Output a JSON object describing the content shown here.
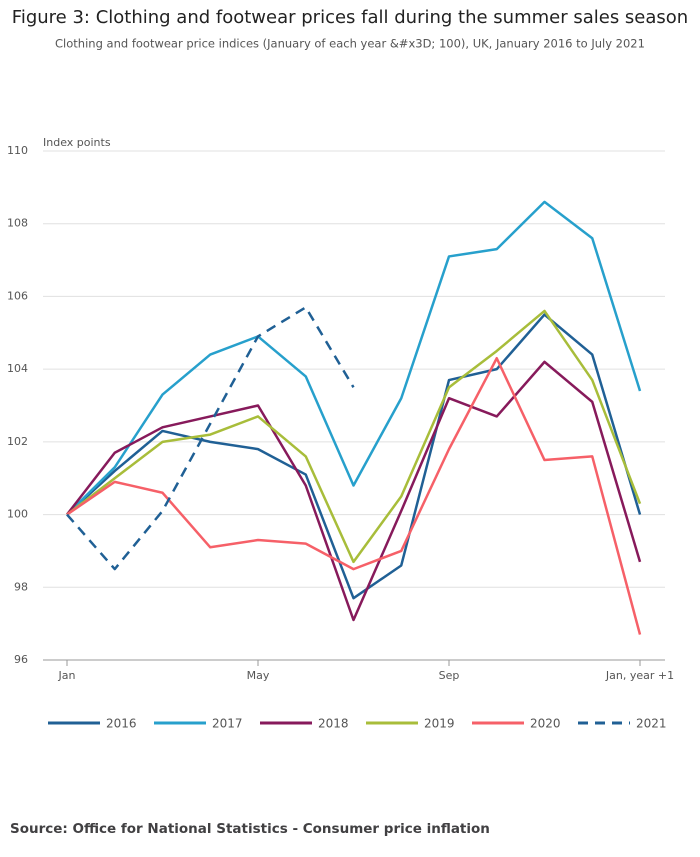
{
  "chart_data": {
    "type": "line",
    "title": "Figure 3: Clothing and footwear prices fall during the summer sales season",
    "subtitle": "Clothing and footwear price indices (January of each year &#x3D; 100), UK, January 2016 to July 2021",
    "ylabel": "Index points",
    "source": "Source: Office for National Statistics - Consumer price inflation",
    "categories": [
      "Jan",
      null,
      null,
      null,
      "May",
      null,
      null,
      null,
      "Sep",
      null,
      null,
      null,
      "Jan, year +1"
    ],
    "ylim": [
      96,
      110
    ],
    "yticks": [
      96,
      98,
      100,
      102,
      104,
      106,
      108,
      110
    ],
    "grid": true,
    "legend": "bottom",
    "series": [
      {
        "name": "2016",
        "color": "#206095",
        "values": [
          100,
          101.2,
          102.3,
          102.0,
          101.8,
          101.1,
          97.7,
          98.6,
          103.7,
          104.0,
          105.5,
          104.4,
          100.0
        ]
      },
      {
        "name": "2017",
        "color": "#27a0cc",
        "values": [
          100,
          101.3,
          103.3,
          104.4,
          104.9,
          103.8,
          100.8,
          103.2,
          107.1,
          107.3,
          108.6,
          107.6,
          103.4
        ]
      },
      {
        "name": "2018",
        "color": "#871a5b",
        "values": [
          100,
          101.7,
          102.4,
          102.7,
          103.0,
          100.8,
          97.1,
          100.1,
          103.2,
          102.7,
          104.2,
          103.1,
          98.7
        ]
      },
      {
        "name": "2019",
        "color": "#a8bd3a",
        "values": [
          100,
          101.0,
          102.0,
          102.2,
          102.7,
          101.6,
          98.7,
          100.5,
          103.5,
          104.5,
          105.6,
          103.7,
          100.3
        ]
      },
      {
        "name": "2020",
        "color": "#f66068",
        "values": [
          100,
          100.9,
          100.6,
          99.1,
          99.3,
          99.2,
          98.5,
          99.0,
          101.8,
          104.3,
          101.5,
          101.6,
          96.7
        ]
      },
      {
        "name": "2021",
        "color": "#206095",
        "line_style": "dashed",
        "values": [
          100,
          98.5,
          100.1,
          102.5,
          104.9,
          105.7,
          103.5,
          null,
          null,
          null,
          null,
          null,
          null
        ]
      }
    ]
  }
}
